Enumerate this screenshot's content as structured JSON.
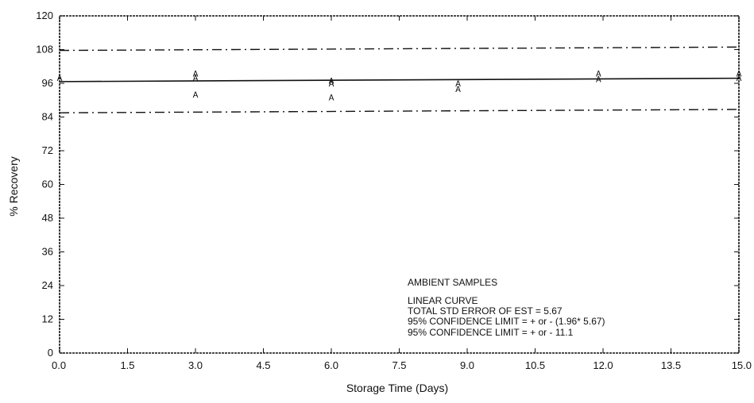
{
  "chart_data": {
    "type": "scatter",
    "title": "",
    "xlabel": "Storage Time (Days)",
    "ylabel": "% Recovery",
    "xlim": [
      0,
      15
    ],
    "ylim": [
      0,
      120
    ],
    "xticks": [
      "0.0",
      "1.5",
      "3.0",
      "4.5",
      "6.0",
      "7.5",
      "9.0",
      "10.5",
      "12.0",
      "13.5",
      "15.0"
    ],
    "yticks": [
      "0",
      "12",
      "24",
      "36",
      "48",
      "60",
      "72",
      "84",
      "96",
      "108",
      "120"
    ],
    "grid": false,
    "point_marker": "A",
    "points": [
      {
        "x": 0,
        "y": 98
      },
      {
        "x": 3,
        "y": 99.5
      },
      {
        "x": 3,
        "y": 98
      },
      {
        "x": 3,
        "y": 92
      },
      {
        "x": 6,
        "y": 97
      },
      {
        "x": 6,
        "y": 96
      },
      {
        "x": 6,
        "y": 91
      },
      {
        "x": 8.8,
        "y": 96
      },
      {
        "x": 8.8,
        "y": 94
      },
      {
        "x": 11.9,
        "y": 99.5
      },
      {
        "x": 11.9,
        "y": 97.5
      },
      {
        "x": 15,
        "y": 99.5
      },
      {
        "x": 15,
        "y": 98
      }
    ],
    "regression_line": {
      "x": [
        0,
        15
      ],
      "y": [
        96.6,
        97.8
      ]
    },
    "upper_confidence_limit": {
      "x": [
        0,
        15
      ],
      "y": [
        107.7,
        108.9
      ]
    },
    "lower_confidence_limit": {
      "x": [
        0,
        15
      ],
      "y": [
        85.5,
        86.7
      ]
    },
    "annotations": [
      "AMBIENT SAMPLES",
      "LINEAR CURVE",
      "TOTAL STD ERROR OF EST = 5.67",
      "95% CONFIDENCE LIMIT = + or - (1.96* 5.67)",
      "95% CONFIDENCE LIMIT = + or - 11.1"
    ]
  }
}
